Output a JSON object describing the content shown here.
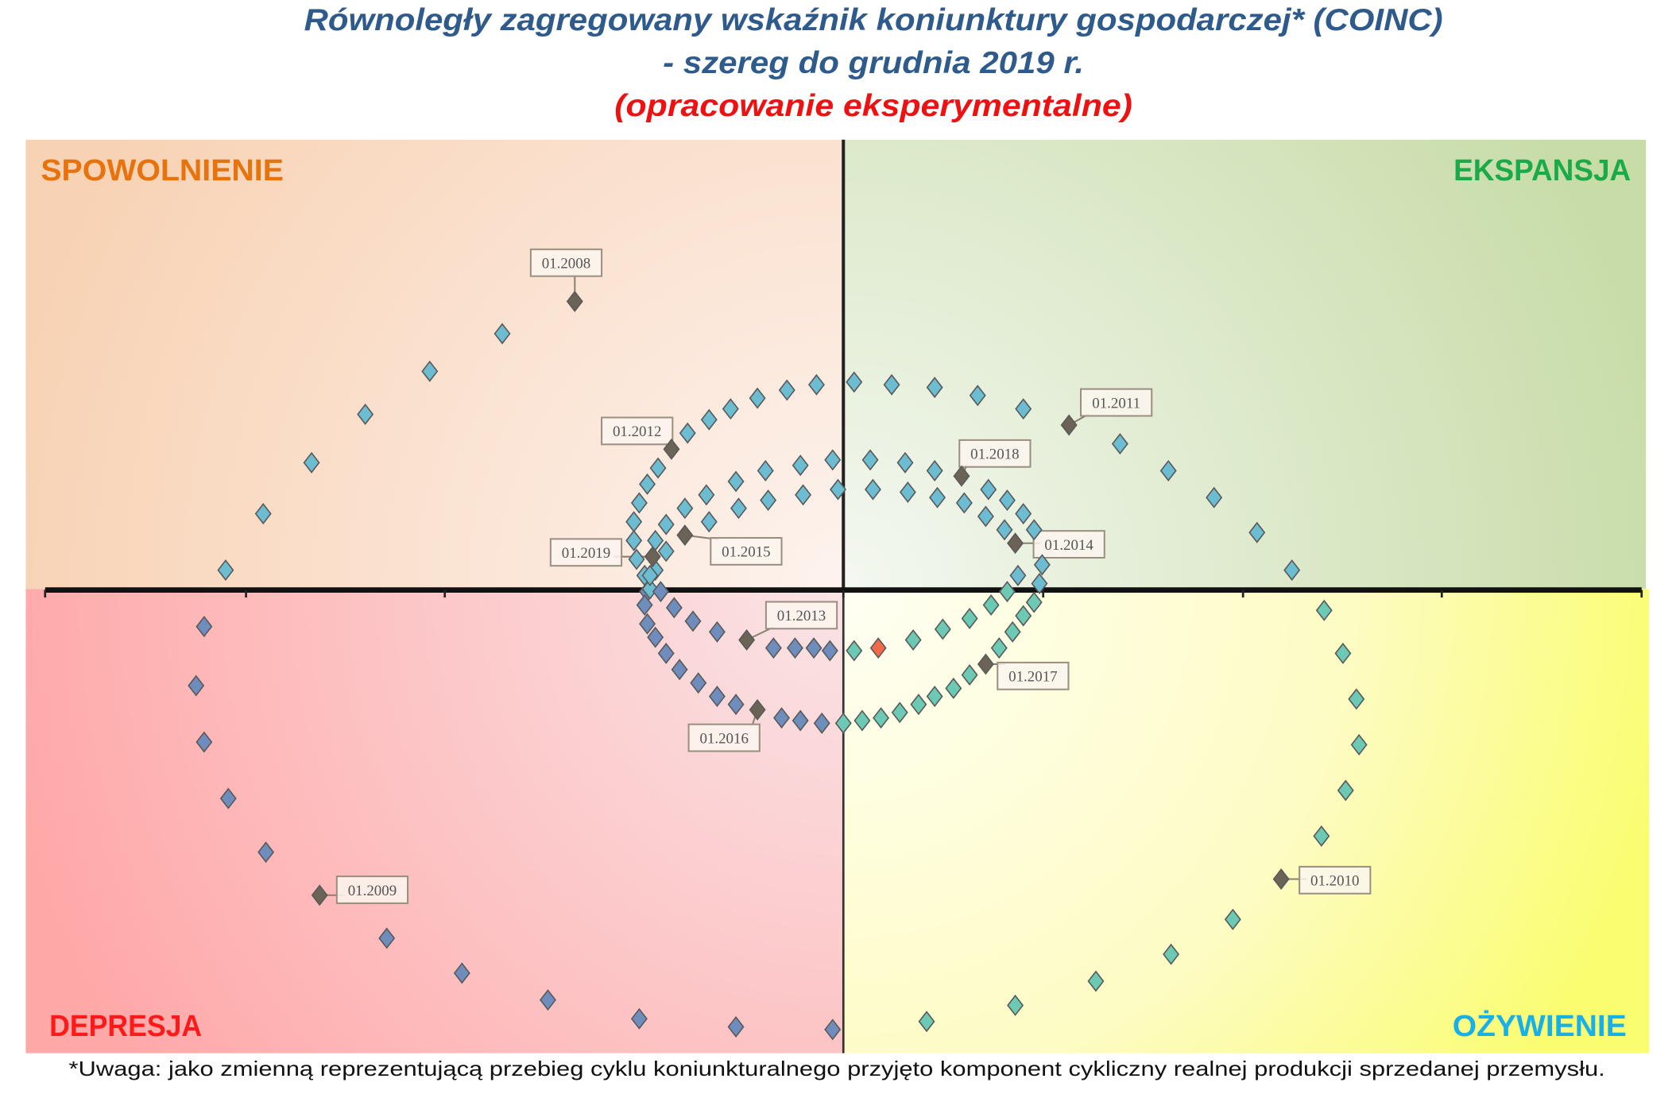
{
  "title": {
    "line1": "Równoległy zagregowany wskaźnik koniunktury gospodarczej* (COINC)",
    "line2": "- szereg do grudnia 2019 r.",
    "line3": "(opracowanie eksperymentalne)"
  },
  "footnote": "*Uwaga: jako zmienną reprezentującą przebieg cyklu koniunkturalnego przyjęto komponent cykliczny realnej produkcji sprzedanej przemysłu.",
  "quadrants": {
    "top_left": {
      "label": "SPOWOLNIENIE",
      "color": "#e8720c"
    },
    "top_right": {
      "label": "EKSPANSJA",
      "color": "#1aaa4a"
    },
    "bottom_left": {
      "label": "DEPRESJA",
      "color": "#ff1a1a"
    },
    "bottom_right": {
      "label": "OŻYWIENIE",
      "color": "#18b0e8"
    }
  },
  "chart_data": {
    "type": "scatter",
    "xlim": [
      -3,
      3
    ],
    "ylim": [
      -1.7,
      1.7
    ],
    "grid": false,
    "legend": "none",
    "marker": "diamond",
    "colors": {
      "upper": "#6cbcd2",
      "lower_left": "#6e8cbc",
      "lower_right": "#6ccab4",
      "labeled": "#6b6355",
      "latest": "#f06a4a"
    },
    "points": [
      [
        -1.0,
        1.07
      ],
      [
        -1.27,
        0.95
      ],
      [
        -1.54,
        0.81
      ],
      [
        -1.78,
        0.65
      ],
      [
        -1.98,
        0.47
      ],
      [
        -2.16,
        0.28
      ],
      [
        -2.3,
        0.07
      ],
      [
        -2.38,
        -0.14
      ],
      [
        -2.41,
        -0.36
      ],
      [
        -2.38,
        -0.57
      ],
      [
        -2.29,
        -0.78
      ],
      [
        -2.15,
        -0.98
      ],
      [
        -1.95,
        -1.14
      ],
      [
        -1.7,
        -1.3
      ],
      [
        -1.42,
        -1.43
      ],
      [
        -1.1,
        -1.53
      ],
      [
        -0.76,
        -1.6
      ],
      [
        -0.4,
        -1.63
      ],
      [
        -0.04,
        -1.64
      ],
      [
        0.31,
        -1.61
      ],
      [
        0.64,
        -1.55
      ],
      [
        0.94,
        -1.46
      ],
      [
        1.22,
        -1.36
      ],
      [
        1.45,
        -1.23
      ],
      [
        1.63,
        -1.08
      ],
      [
        1.78,
        -0.92
      ],
      [
        1.87,
        -0.75
      ],
      [
        1.92,
        -0.58
      ],
      [
        1.91,
        -0.41
      ],
      [
        1.86,
        -0.24
      ],
      [
        1.79,
        -0.08
      ],
      [
        1.67,
        0.07
      ],
      [
        1.54,
        0.21
      ],
      [
        1.38,
        0.34
      ],
      [
        1.21,
        0.44
      ],
      [
        1.03,
        0.54
      ],
      [
        0.84,
        0.61
      ],
      [
        0.67,
        0.67
      ],
      [
        0.5,
        0.72
      ],
      [
        0.34,
        0.75
      ],
      [
        0.18,
        0.76
      ],
      [
        0.04,
        0.77
      ],
      [
        -0.1,
        0.76
      ],
      [
        -0.21,
        0.74
      ],
      [
        -0.32,
        0.71
      ],
      [
        -0.42,
        0.67
      ],
      [
        -0.5,
        0.63
      ],
      [
        -0.58,
        0.58
      ],
      [
        -0.64,
        0.52
      ],
      [
        -0.69,
        0.45
      ],
      [
        -0.73,
        0.39
      ],
      [
        -0.76,
        0.32
      ],
      [
        -0.78,
        0.25
      ],
      [
        -0.78,
        0.18
      ],
      [
        -0.77,
        0.11
      ],
      [
        -0.74,
        0.05
      ],
      [
        -0.73,
        -0.01
      ],
      [
        -0.74,
        -0.06
      ],
      [
        -0.63,
        -0.07
      ],
      [
        -0.56,
        -0.12
      ],
      [
        -0.47,
        -0.16
      ],
      [
        -0.36,
        -0.19
      ],
      [
        -0.26,
        -0.22
      ],
      [
        -0.18,
        -0.22
      ],
      [
        -0.11,
        -0.22
      ],
      [
        -0.05,
        -0.23
      ],
      [
        0.04,
        -0.23
      ],
      [
        0.26,
        -0.19
      ],
      [
        0.37,
        -0.15
      ],
      [
        0.47,
        -0.11
      ],
      [
        0.55,
        -0.06
      ],
      [
        0.61,
        -0.01
      ],
      [
        0.65,
        0.05
      ],
      [
        0.64,
        0.17
      ],
      [
        0.6,
        0.22
      ],
      [
        0.53,
        0.27
      ],
      [
        0.45,
        0.32
      ],
      [
        0.35,
        0.34
      ],
      [
        0.24,
        0.36
      ],
      [
        0.11,
        0.37
      ],
      [
        -0.02,
        0.37
      ],
      [
        -0.15,
        0.35
      ],
      [
        -0.28,
        0.33
      ],
      [
        -0.39,
        0.3
      ],
      [
        -0.5,
        0.25
      ],
      [
        -0.59,
        0.2
      ],
      [
        -0.66,
        0.14
      ],
      [
        -0.7,
        0.07
      ],
      [
        -0.72,
        0.0
      ],
      [
        -0.73,
        -0.13
      ],
      [
        -0.7,
        -0.18
      ],
      [
        -0.66,
        -0.24
      ],
      [
        -0.61,
        -0.3
      ],
      [
        -0.54,
        -0.35
      ],
      [
        -0.47,
        -0.4
      ],
      [
        -0.4,
        -0.43
      ],
      [
        -0.32,
        -0.45
      ],
      [
        -0.23,
        -0.48
      ],
      [
        -0.16,
        -0.49
      ],
      [
        -0.08,
        -0.5
      ],
      [
        0.0,
        -0.5
      ],
      [
        0.07,
        -0.49
      ],
      [
        0.14,
        -0.48
      ],
      [
        0.21,
        -0.46
      ],
      [
        0.28,
        -0.43
      ],
      [
        0.34,
        -0.4
      ],
      [
        0.41,
        -0.37
      ],
      [
        0.47,
        -0.32
      ],
      [
        0.53,
        -0.28
      ],
      [
        0.58,
        -0.22
      ],
      [
        0.63,
        -0.16
      ],
      [
        0.67,
        -0.1
      ],
      [
        0.71,
        -0.05
      ],
      [
        0.73,
        0.02
      ],
      [
        0.74,
        0.09
      ],
      [
        0.71,
        0.22
      ],
      [
        0.67,
        0.28
      ],
      [
        0.61,
        0.33
      ],
      [
        0.54,
        0.37
      ],
      [
        0.44,
        0.42
      ],
      [
        0.34,
        0.44
      ],
      [
        0.23,
        0.47
      ],
      [
        0.1,
        0.48
      ],
      [
        -0.04,
        0.48
      ],
      [
        -0.16,
        0.46
      ],
      [
        -0.29,
        0.44
      ],
      [
        -0.4,
        0.4
      ],
      [
        -0.51,
        0.35
      ],
      [
        -0.59,
        0.3
      ],
      [
        -0.66,
        0.24
      ],
      [
        -0.7,
        0.18
      ],
      [
        -0.71,
        0.12
      ],
      [
        -0.72,
        0.05
      ],
      [
        -0.68,
        -0.01
      ],
      [
        0.13,
        -0.22
      ]
    ],
    "labels": [
      {
        "text": "01.2008",
        "point": 0
      },
      {
        "text": "01.2009",
        "point": 12
      },
      {
        "text": "01.2010",
        "point": 24
      },
      {
        "text": "01.2011",
        "point": 36
      },
      {
        "text": "01.2012",
        "point": 48
      },
      {
        "text": "01.2013",
        "point": 61
      },
      {
        "text": "01.2014",
        "point": 73
      },
      {
        "text": "01.2015",
        "point": 85
      },
      {
        "text": "01.2016",
        "point": 96
      },
      {
        "text": "01.2017",
        "point": 108
      },
      {
        "text": "01.2018",
        "point": 119
      },
      {
        "text": "01.2019",
        "point": 131
      }
    ],
    "latest_point": 134
  }
}
